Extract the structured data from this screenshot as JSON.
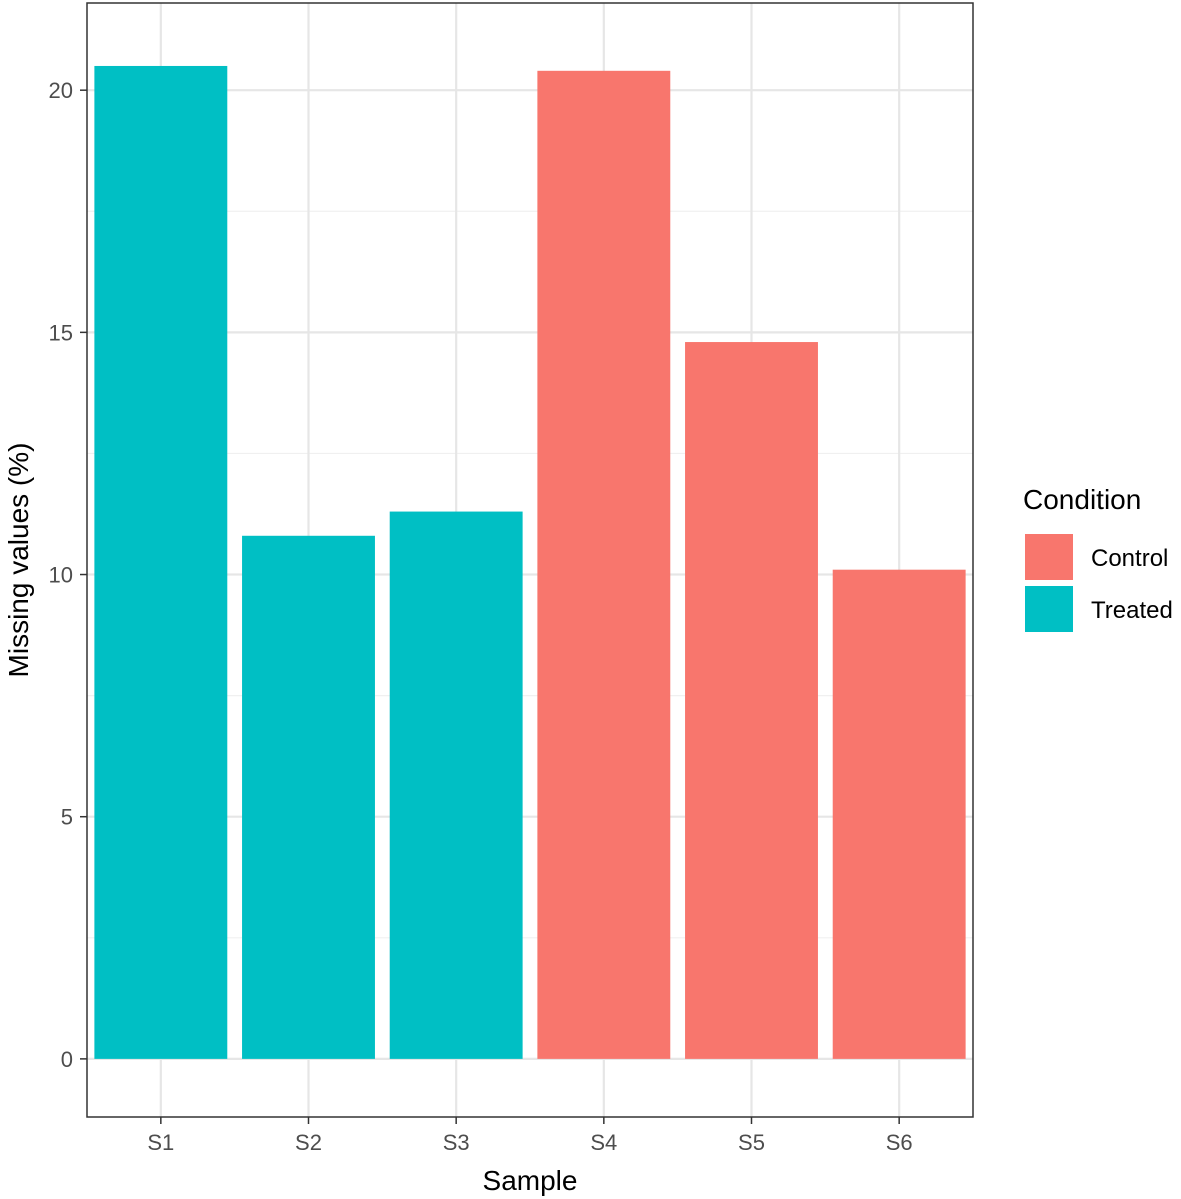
{
  "chart_data": {
    "type": "bar",
    "categories": [
      "S1",
      "S2",
      "S3",
      "S4",
      "S5",
      "S6"
    ],
    "values": [
      20.5,
      10.8,
      11.3,
      20.4,
      14.8,
      10.1
    ],
    "groups": [
      "Treated",
      "Treated",
      "Treated",
      "Control",
      "Control",
      "Control"
    ],
    "xlabel": "Sample",
    "ylabel": "Missing values (%)",
    "ylim": [
      -1.2,
      21.8
    ],
    "yticks": [
      0,
      5,
      10,
      15,
      20
    ],
    "ytick_labels": [
      "0",
      "5",
      "10",
      "15",
      "20"
    ],
    "grid": true,
    "legend": {
      "title": "Condition",
      "placement": "right",
      "entries": [
        {
          "label": "Control",
          "color": "#F8766D"
        },
        {
          "label": "Treated",
          "color": "#00BFC4"
        }
      ]
    }
  }
}
